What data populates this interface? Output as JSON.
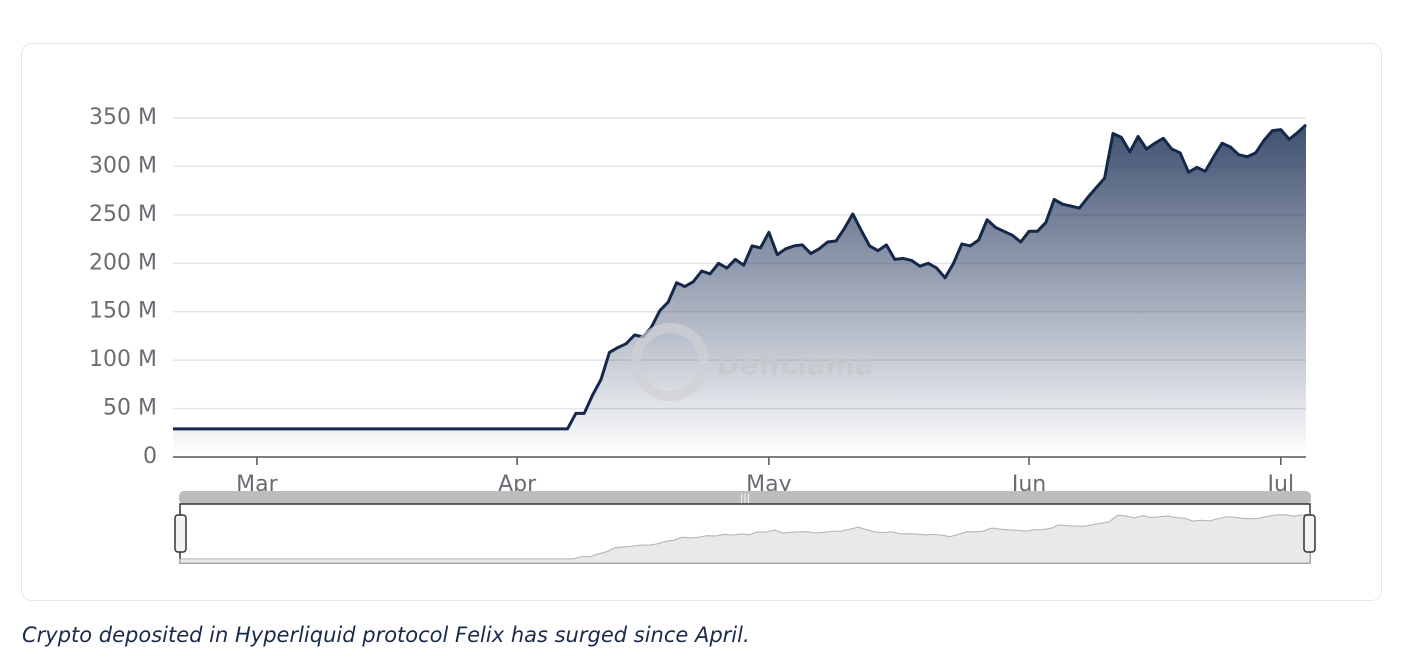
{
  "chart_data": {
    "type": "area",
    "caption": "Crypto deposited in Hyperliquid protocol Felix has surged since April.",
    "watermark": "DefiLlama",
    "x": [
      -10,
      37,
      38,
      39,
      40,
      41,
      42,
      43,
      44,
      45,
      46,
      47,
      48,
      49,
      50,
      51,
      52,
      53,
      54,
      55,
      56,
      57,
      58,
      59,
      60,
      61,
      62,
      63,
      64,
      65,
      66,
      67,
      68,
      69,
      70,
      71,
      72,
      73,
      74,
      75,
      76,
      77,
      78,
      79,
      80,
      81,
      82,
      83,
      84,
      85,
      86,
      87,
      88,
      89,
      90,
      91,
      92,
      93,
      94,
      95,
      96,
      97,
      98,
      99,
      100,
      101,
      102,
      103,
      104,
      105,
      106,
      107,
      108,
      109,
      110,
      111,
      112,
      113,
      114,
      115,
      116,
      117,
      118,
      119,
      120,
      121,
      122,
      123,
      124,
      125
    ],
    "series": [
      {
        "color": "#14284b",
        "values": [
          29,
          29,
          45,
          45,
          64,
          80,
          108,
          113,
          117,
          126,
          124,
          134,
          151,
          160,
          180,
          176,
          181,
          192,
          189,
          200,
          195,
          204,
          198,
          218,
          216,
          232,
          209,
          215,
          218,
          219,
          210,
          215,
          222,
          223,
          236,
          251,
          234,
          218,
          213,
          219,
          204,
          205,
          203,
          197,
          200,
          195,
          185,
          200,
          220,
          218,
          224,
          245,
          237,
          233,
          229,
          222,
          233,
          233,
          242,
          266,
          261,
          259,
          257,
          268,
          278,
          288,
          334,
          330,
          315,
          331,
          318,
          324,
          329,
          318,
          314,
          294,
          299,
          295,
          310,
          324,
          320,
          312,
          310,
          314,
          327,
          337,
          338,
          328,
          335,
          343
        ]
      }
    ],
    "xlim": [
      -10,
      125
    ],
    "xticks": [
      {
        "value": 0,
        "label": "Mar"
      },
      {
        "value": 31,
        "label": "Apr"
      },
      {
        "value": 61,
        "label": "May"
      },
      {
        "value": 92,
        "label": "Jun"
      },
      {
        "value": 122,
        "label": "Jul"
      }
    ],
    "ylim": [
      0,
      350
    ],
    "yticks": [
      0,
      {
        "value": 50,
        "label": "50 M"
      },
      {
        "value": 100,
        "label": "100 M"
      },
      {
        "value": 150,
        "label": "150 M"
      },
      {
        "value": 200,
        "label": "200 M"
      },
      {
        "value": 250,
        "label": "250 M"
      },
      {
        "value": 300,
        "label": "300 M"
      },
      {
        "value": 350,
        "label": "350 M"
      }
    ],
    "grid": true
  }
}
